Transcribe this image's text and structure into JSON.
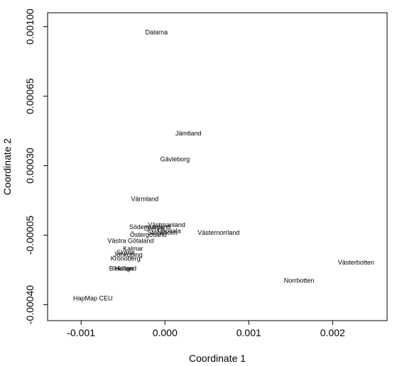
{
  "chart_data": {
    "type": "scatter",
    "title": "",
    "xlabel": "Coordinate 1",
    "ylabel": "Coordinate 2",
    "xlim": [
      -0.0014,
      0.00265
    ],
    "ylim": [
      -0.00048,
      0.00107
    ],
    "x_ticks": [
      -0.001,
      0.0,
      0.001,
      0.002
    ],
    "x_tick_labels": [
      "-0.001",
      "0.000",
      "0.001",
      "0.002"
    ],
    "y_ticks": [
      0.001,
      0.00065,
      0.0003,
      -5e-05,
      -0.0004
    ],
    "y_tick_labels": [
      "0.00100",
      "0.00065",
      "0.00030",
      "-0.00005",
      "-0.00040"
    ],
    "grid": false,
    "points": [
      {
        "label": "Dalarna",
        "x": -0.0001,
        "y": 0.00097
      },
      {
        "label": "Jämtland",
        "x": 0.00028,
        "y": 0.00046
      },
      {
        "label": "Gävleborg",
        "x": 0.00012,
        "y": 0.00033
      },
      {
        "label": "Värmland",
        "x": -0.00024,
        "y": 0.00013
      },
      {
        "label": "Västmanland",
        "x": 2e-05,
        "y": 0.0
      },
      {
        "label": "Södermanland",
        "x": -0.00018,
        "y": -1e-05
      },
      {
        "label": "Örebro",
        "x": -0.00013,
        "y": -2e-05
      },
      {
        "label": "Uppsala",
        "x": 5e-05,
        "y": -3e-05
      },
      {
        "label": "Västernorrland",
        "x": 0.00064,
        "y": -4e-05
      },
      {
        "label": "Östergötland",
        "x": -0.0002,
        "y": -5e-05
      },
      {
        "label": "Stockholm",
        "x": -3e-05,
        "y": -4e-05
      },
      {
        "label": "Västra Götaland",
        "x": -0.00041,
        "y": -8e-05
      },
      {
        "label": "Kalmar",
        "x": -0.00038,
        "y": -0.00012
      },
      {
        "label": "Skåne",
        "x": -0.00047,
        "y": -0.00014
      },
      {
        "label": "Jönköping",
        "x": -0.00044,
        "y": -0.00015
      },
      {
        "label": "Kronoberg",
        "x": -0.00047,
        "y": -0.00017
      },
      {
        "label": "Västerbotten",
        "x": 0.00228,
        "y": -0.00019
      },
      {
        "label": "Blekinge",
        "x": -0.00052,
        "y": -0.00022
      },
      {
        "label": "Halland",
        "x": -0.00047,
        "y": -0.00022
      },
      {
        "label": "Norrbotten",
        "x": 0.0016,
        "y": -0.00028
      },
      {
        "label": "HapMap CEU",
        "x": -0.00086,
        "y": -0.00037
      }
    ]
  }
}
